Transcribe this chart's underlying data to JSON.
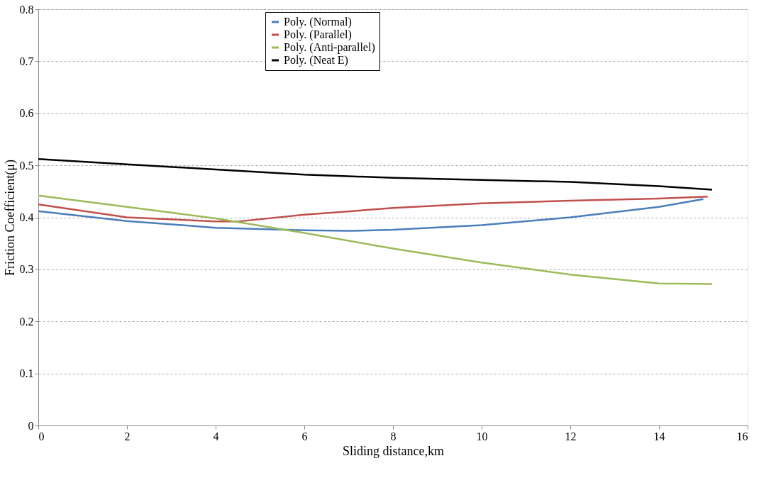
{
  "chart_data": {
    "type": "line",
    "xlabel": "Sliding distance,km",
    "ylabel": "Friction Coefficient(μ)",
    "xlim": [
      0,
      16
    ],
    "xticks": [
      0,
      2,
      4,
      6,
      8,
      10,
      12,
      14,
      16
    ],
    "ylim": [
      0,
      0.8
    ],
    "yticks": [
      0,
      0.1,
      0.2,
      0.3,
      0.4,
      0.5,
      0.6,
      0.7,
      0.8
    ],
    "grid": "y",
    "legend": "top",
    "line_style": "solid",
    "series": [
      {
        "name": "Poly. (Normal)",
        "color": "#4a7ebb",
        "x": [
          0,
          2,
          4,
          6,
          7,
          8,
          10,
          12,
          14,
          15
        ],
        "values": [
          0.412,
          0.393,
          0.38,
          0.375,
          0.374,
          0.376,
          0.385,
          0.4,
          0.42,
          0.435
        ]
      },
      {
        "name": "Poly. (Parallel)",
        "color": "#c0504d",
        "x": [
          0,
          2,
          4,
          4.5,
          6,
          8,
          10,
          12,
          14,
          15.1
        ],
        "values": [
          0.425,
          0.4,
          0.392,
          0.392,
          0.405,
          0.418,
          0.427,
          0.432,
          0.436,
          0.44
        ]
      },
      {
        "name": "Poly. (Anti-parallel)",
        "color": "#9bbb59",
        "x": [
          0,
          2,
          4,
          6,
          8,
          10,
          12,
          14,
          15.2
        ],
        "values": [
          0.442,
          0.42,
          0.398,
          0.37,
          0.34,
          0.313,
          0.29,
          0.273,
          0.272
        ]
      },
      {
        "name": "Poly. (Neat E)",
        "color": "#000000",
        "x": [
          0,
          2,
          4,
          6,
          8,
          10,
          12,
          14,
          15.2
        ],
        "values": [
          0.512,
          0.502,
          0.492,
          0.482,
          0.476,
          0.472,
          0.468,
          0.46,
          0.453
        ]
      }
    ]
  }
}
